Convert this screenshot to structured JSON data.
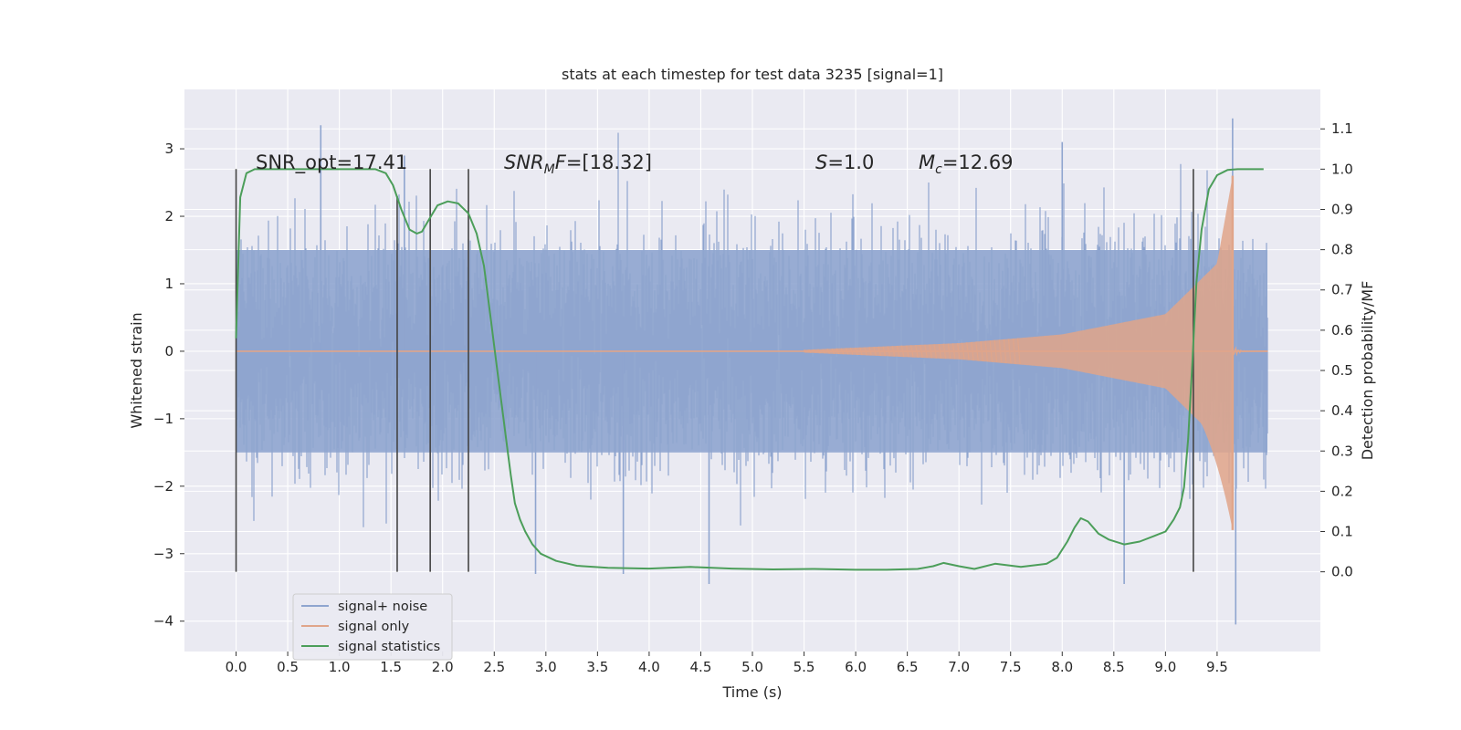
{
  "chart_data": {
    "type": "line",
    "title": "stats at each timestep for test data 3235 [signal=1]",
    "xlabel": "Time (s)",
    "ylabel": "Whitened strain",
    "y2label": "Detection probability/MF",
    "xlim": [
      -0.5,
      10.5
    ],
    "ylim": [
      -4.45,
      3.88
    ],
    "y2lim": [
      -0.198,
      1.198
    ],
    "xticks": [
      "0.0",
      "0.5",
      "1.0",
      "1.5",
      "2.0",
      "2.5",
      "3.0",
      "3.5",
      "4.0",
      "4.5",
      "5.0",
      "5.5",
      "6.0",
      "6.5",
      "7.0",
      "7.5",
      "8.0",
      "8.5",
      "9.0",
      "9.5"
    ],
    "yticks": [
      "3",
      "2",
      "1",
      "0",
      "−1",
      "−2",
      "−3",
      "−4"
    ],
    "y2ticks": [
      "1.1",
      "1.0",
      "0.9",
      "0.8",
      "0.7",
      "0.6",
      "0.5",
      "0.4",
      "0.3",
      "0.2",
      "0.1",
      "0.0"
    ],
    "grid": true,
    "legend_position": "lower-left",
    "annotations": {
      "snr_opt": "SNR_opt=17.41",
      "snr_mf": "SNR_MF=[18.32]",
      "s_value": "S=1.0",
      "mc_value": "M_c=12.69"
    },
    "series": [
      {
        "name": "signal+ noise",
        "color": "#8fa5cf",
        "axis": "left",
        "x_range": [
          0.0,
          9.99
        ],
        "envelope_typical": [
          -1.5,
          1.5
        ],
        "envelope_extreme": [
          -3.3,
          3.4
        ],
        "spikes": [
          {
            "x": 0.82,
            "y": 3.35
          },
          {
            "x": 1.63,
            "y": 2.9
          },
          {
            "x": 2.9,
            "y": -3.3
          },
          {
            "x": 3.75,
            "y": -3.3
          },
          {
            "x": 4.58,
            "y": -3.45
          },
          {
            "x": 8.0,
            "y": 3.1
          },
          {
            "x": 8.6,
            "y": -3.45
          },
          {
            "x": 9.65,
            "y": 3.45
          },
          {
            "x": 9.68,
            "y": -4.05
          }
        ]
      },
      {
        "name": "signal only",
        "color": "#e0a58a",
        "axis": "left",
        "chirp_start": 5.5,
        "merger": 9.65,
        "amp_at": [
          [
            5.5,
            0.02
          ],
          [
            7.0,
            0.12
          ],
          [
            8.0,
            0.25
          ],
          [
            9.0,
            0.55
          ],
          [
            9.5,
            1.3
          ],
          [
            9.65,
            2.6
          ]
        ],
        "peak_neg": -2.65
      },
      {
        "name": "signal statistics",
        "color": "#4c9e5a",
        "axis": "right",
        "x": [
          0.0,
          0.04,
          0.1,
          0.18,
          0.3,
          0.5,
          0.8,
          1.0,
          1.2,
          1.35,
          1.45,
          1.52,
          1.6,
          1.68,
          1.75,
          1.8,
          1.88,
          1.95,
          2.05,
          2.15,
          2.25,
          2.33,
          2.4,
          2.47,
          2.52,
          2.58,
          2.62,
          2.66,
          2.7,
          2.75,
          2.8,
          2.87,
          2.95,
          3.1,
          3.3,
          3.6,
          4.0,
          4.4,
          4.8,
          5.2,
          5.6,
          6.0,
          6.3,
          6.6,
          6.75,
          6.85,
          7.0,
          7.15,
          7.35,
          7.6,
          7.85,
          7.95,
          8.05,
          8.12,
          8.18,
          8.25,
          8.35,
          8.45,
          8.6,
          8.75,
          8.9,
          9.0,
          9.08,
          9.14,
          9.18,
          9.22,
          9.26,
          9.3,
          9.35,
          9.42,
          9.5,
          9.6,
          9.7,
          9.8,
          9.9,
          9.95
        ],
        "y": [
          0.58,
          0.93,
          0.99,
          1.0,
          1.0,
          1.0,
          1.0,
          1.0,
          1.0,
          1.0,
          0.99,
          0.96,
          0.9,
          0.85,
          0.84,
          0.845,
          0.88,
          0.91,
          0.92,
          0.915,
          0.89,
          0.84,
          0.76,
          0.62,
          0.52,
          0.4,
          0.32,
          0.24,
          0.17,
          0.13,
          0.1,
          0.068,
          0.045,
          0.027,
          0.015,
          0.01,
          0.008,
          0.012,
          0.008,
          0.006,
          0.007,
          0.005,
          0.005,
          0.007,
          0.014,
          0.022,
          0.014,
          0.007,
          0.02,
          0.012,
          0.02,
          0.035,
          0.075,
          0.11,
          0.133,
          0.125,
          0.095,
          0.08,
          0.068,
          0.075,
          0.09,
          0.1,
          0.13,
          0.16,
          0.21,
          0.33,
          0.52,
          0.72,
          0.85,
          0.95,
          0.985,
          0.998,
          1.0,
          1.0,
          1.0,
          1.0
        ]
      }
    ],
    "vertical_markers": [
      {
        "x": 0.0,
        "y_top": 2.7
      },
      {
        "x": 1.56,
        "y_top": 2.3
      },
      {
        "x": 1.88,
        "y_top": 2.7
      },
      {
        "x": 2.25,
        "y_top": 2.7
      },
      {
        "x": 9.27,
        "y_top": 2.7
      }
    ]
  }
}
